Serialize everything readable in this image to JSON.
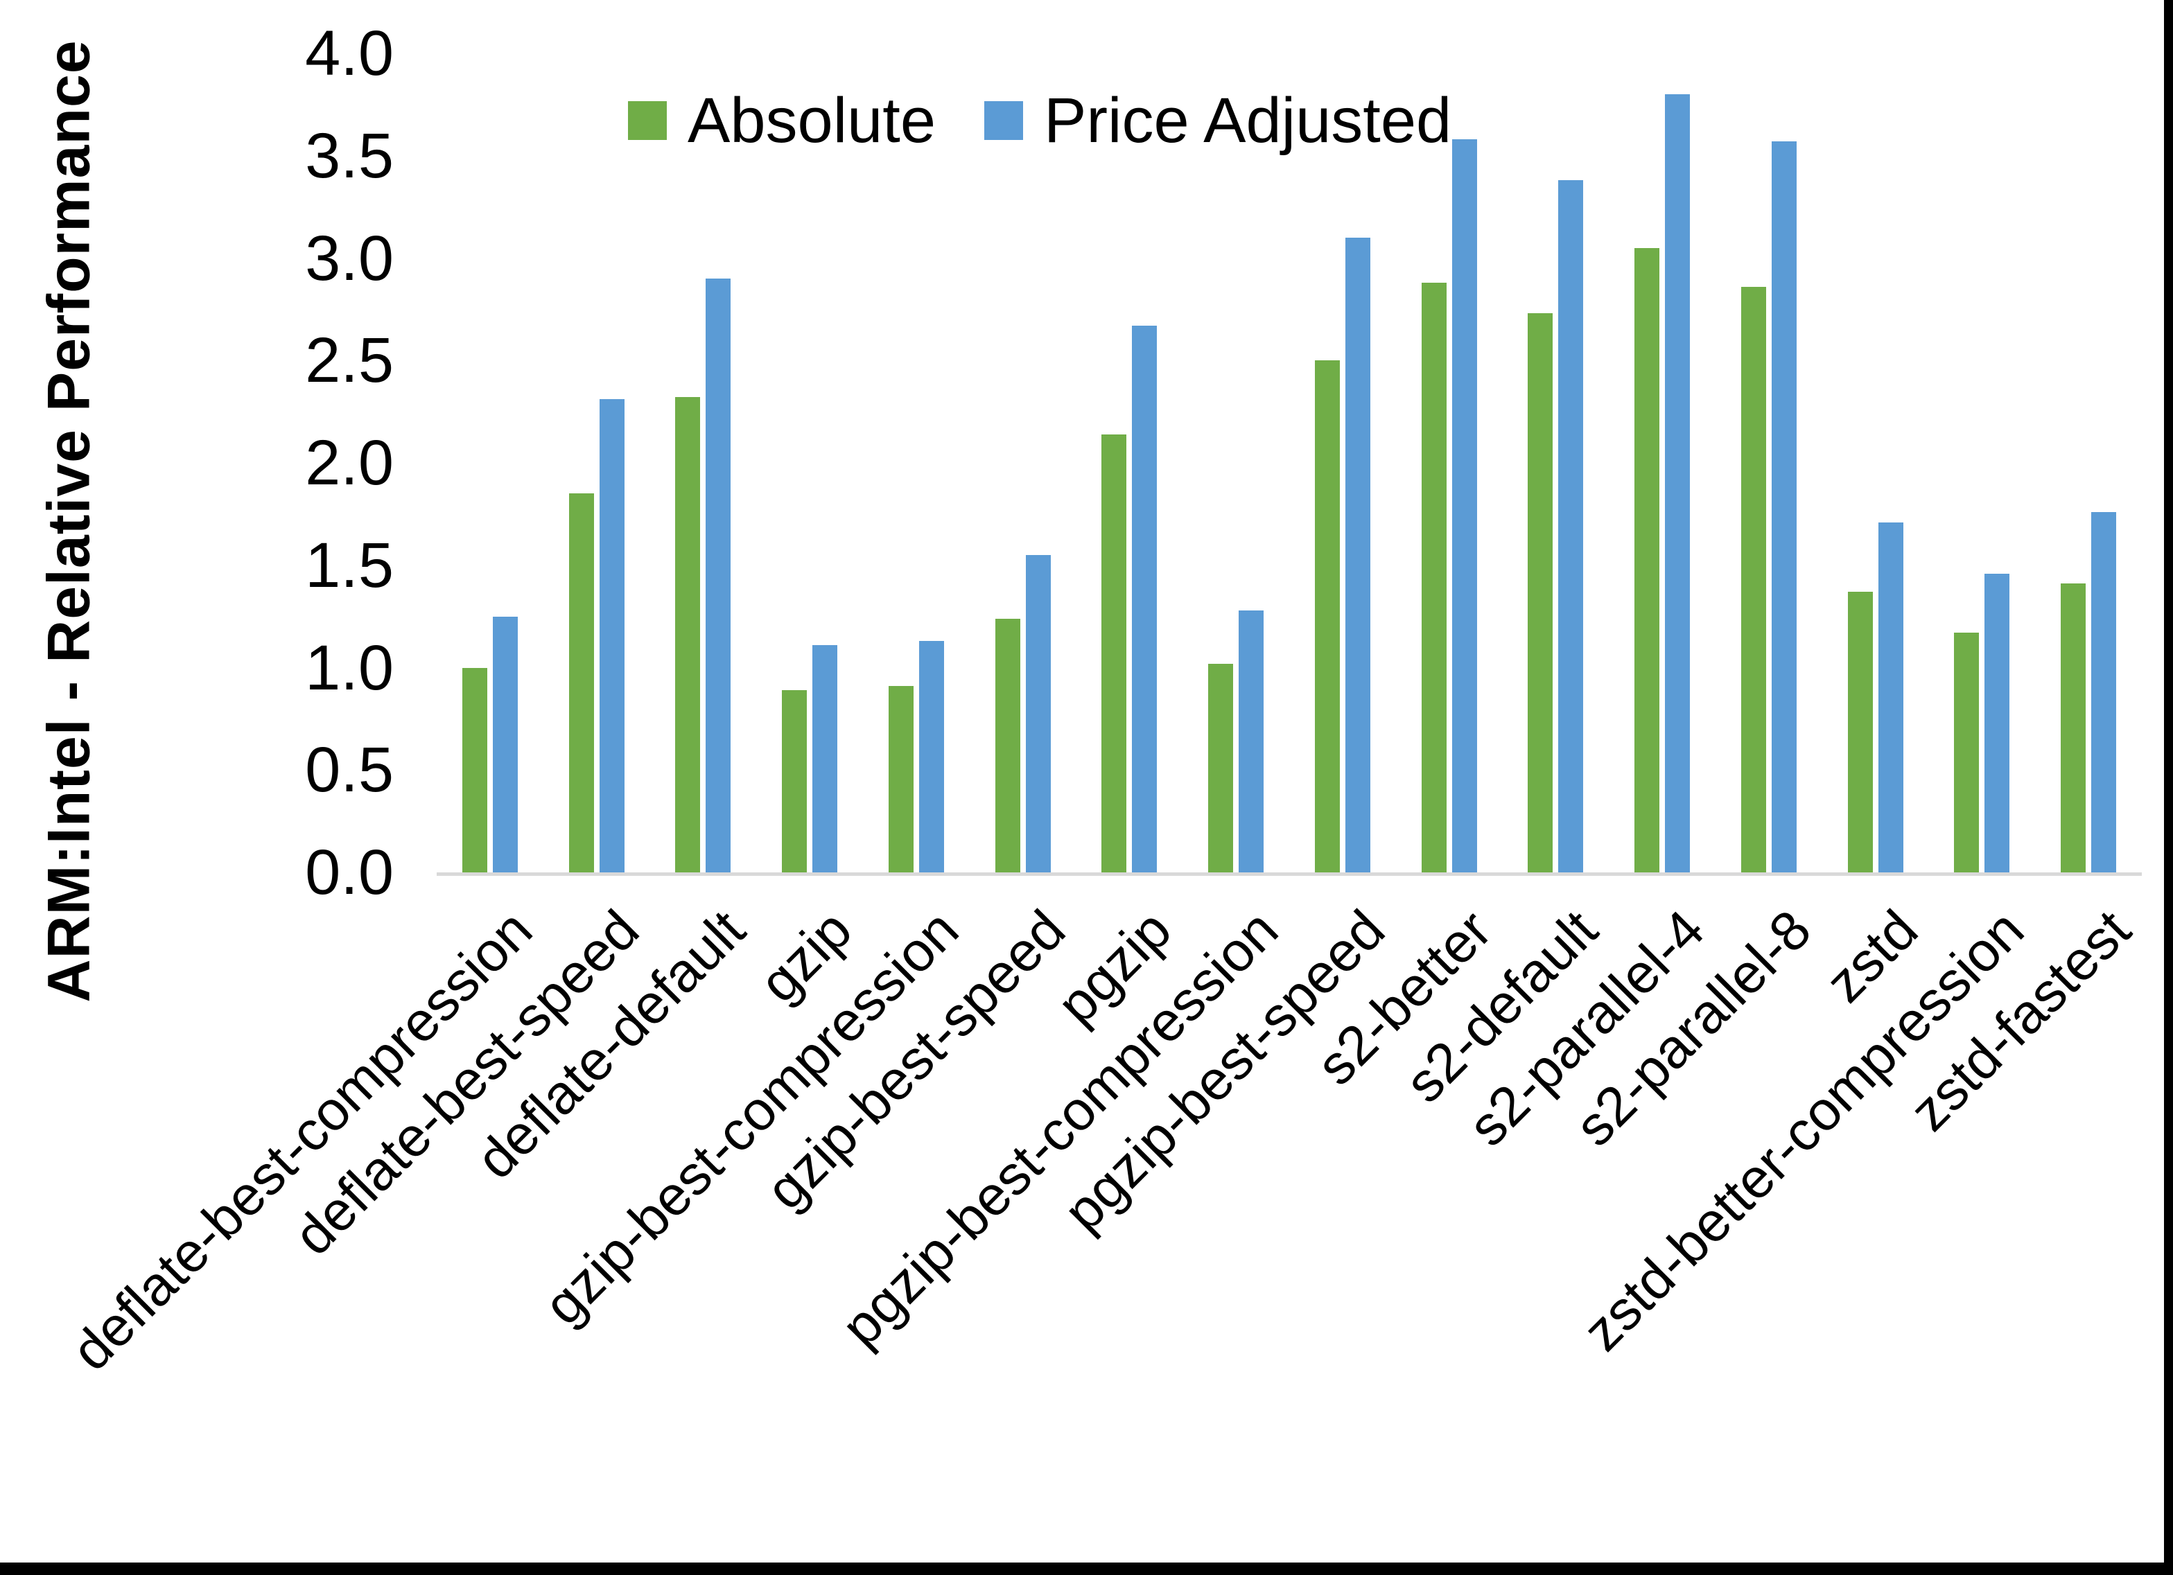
{
  "y_axis": {
    "title": "ARM:Intel - Relative Performance",
    "tick_labels": [
      "4.0",
      "3.5",
      "3.0",
      "2.5",
      "2.0",
      "1.5",
      "1.0",
      "0.5",
      "0.0"
    ]
  },
  "legend": {
    "items": [
      {
        "label": "Absolute",
        "color": "#70AD47"
      },
      {
        "label": "Price Adjusted",
        "color": "#5B9BD5"
      }
    ]
  },
  "colors": {
    "absolute_green": "#70AD47",
    "price_adjusted_blue": "#5B9BD5",
    "axis_line_gray": "#D9D9D9",
    "text_black": "#000000"
  },
  "chart_data": {
    "type": "bar",
    "title": "",
    "xlabel": "",
    "ylabel": "ARM:Intel - Relative Performance",
    "ylim": [
      0.0,
      4.0
    ],
    "ytick_step": 0.5,
    "grid": false,
    "legend_position": "top-center-inside",
    "categories": [
      "deflate-best-compression",
      "deflate-best-speed",
      "deflate-default",
      "gzip",
      "gzip-best-compression",
      "gzip-best-speed",
      "pgzip",
      "pgzip-best-compression",
      "pgzip-best-speed",
      "s2-better",
      "s2-default",
      "s2-parallel-4",
      "s2-parallel-8",
      "zstd",
      "zstd-better-compression",
      "zstd-fastest"
    ],
    "series": [
      {
        "name": "Absolute",
        "color": "#70AD47",
        "values": [
          1.0,
          1.85,
          2.32,
          0.89,
          0.91,
          1.24,
          2.14,
          1.02,
          2.5,
          2.88,
          2.73,
          3.05,
          2.86,
          1.37,
          1.17,
          1.41
        ]
      },
      {
        "name": "Price Adjusted",
        "color": "#5B9BD5",
        "values": [
          1.25,
          2.31,
          2.9,
          1.11,
          1.13,
          1.55,
          2.67,
          1.28,
          3.1,
          3.58,
          3.38,
          3.8,
          3.57,
          1.71,
          1.46,
          1.76
        ]
      }
    ]
  }
}
